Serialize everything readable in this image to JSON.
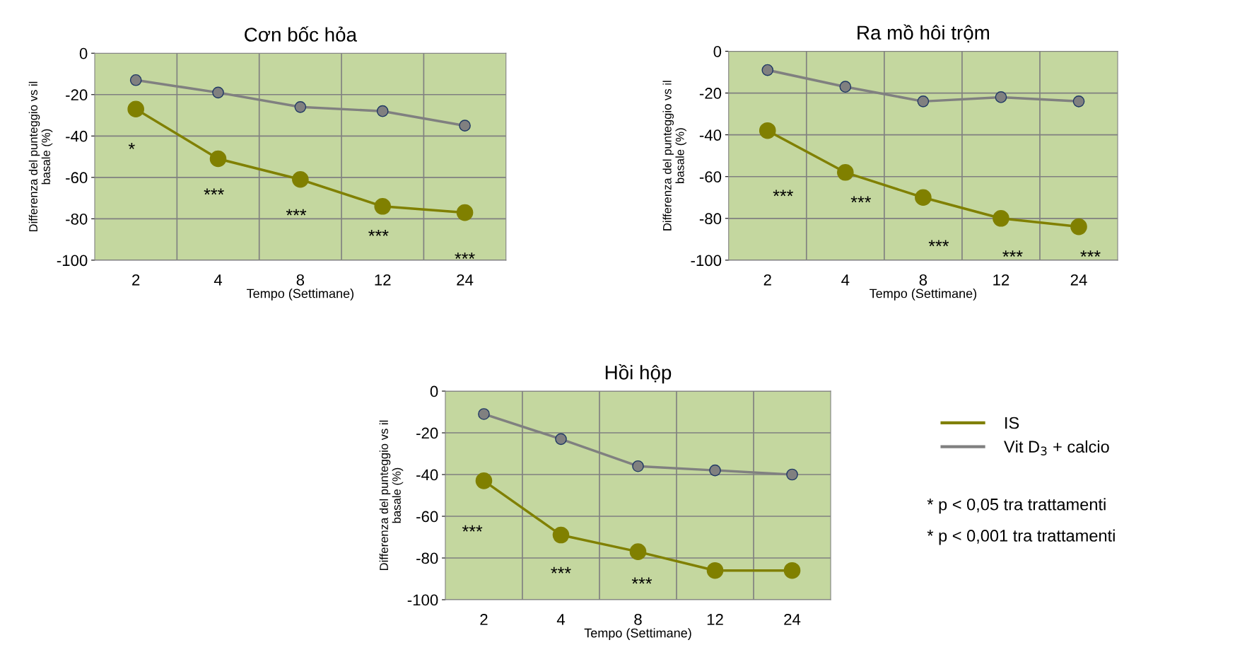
{
  "chart_data": [
    {
      "type": "line",
      "title": "Cơn bốc hỏa",
      "xlabel": "Tempo (Settimane)",
      "ylabel": "Differenza del punteggio vs il\nbasale (%)",
      "categories": [
        "2",
        "4",
        "8",
        "12",
        "24"
      ],
      "ylim": [
        -100,
        0
      ],
      "yticks": [
        -100,
        -80,
        -60,
        -40,
        -20,
        0
      ],
      "grid": true,
      "marker": "circle",
      "series": [
        {
          "color": "#808000",
          "values": [
            -27,
            -51,
            -61,
            -74,
            -77
          ]
        },
        {
          "color": "#808080",
          "values": [
            -13,
            -19,
            -26,
            -28,
            -35
          ]
        }
      ],
      "annotations": [
        "*",
        "***",
        "***",
        "***",
        "***"
      ]
    },
    {
      "type": "line",
      "title": "Ra mồ hôi trộm",
      "xlabel": "Tempo (Settimane)",
      "ylabel": "Differenza del punteggio vs il\nbasale (%)",
      "categories": [
        "2",
        "4",
        "8",
        "12",
        "24"
      ],
      "ylim": [
        -100,
        0
      ],
      "yticks": [
        -100,
        -80,
        -60,
        -40,
        -20,
        0
      ],
      "grid": true,
      "marker": "circle",
      "series": [
        {
          "color": "#808000",
          "values": [
            -38,
            -58,
            -70,
            -80,
            -84
          ]
        },
        {
          "color": "#808080",
          "values": [
            -9,
            -17,
            -24,
            -22,
            -24
          ]
        }
      ],
      "annotations": [
        "***",
        "***",
        "***",
        "***",
        "***"
      ]
    },
    {
      "type": "line",
      "title": "Hồi hộp",
      "xlabel": "Tempo (Settimane)",
      "ylabel": "Differenza del punteggio vs il\nbasale (%)",
      "categories": [
        "2",
        "4",
        "8",
        "12",
        "24"
      ],
      "ylim": [
        -100,
        0
      ],
      "yticks": [
        -100,
        -80,
        -60,
        -40,
        -20,
        0
      ],
      "grid": true,
      "marker": "circle",
      "legend": "right",
      "series": [
        {
          "name": "IS",
          "color": "#808000",
          "values": [
            -43,
            -69,
            -77,
            -86,
            -86
          ]
        },
        {
          "name": "Vit D$_{3}$ + calcio",
          "color": "#808080",
          "values": [
            -11,
            -23,
            -36,
            -38,
            -40
          ]
        }
      ],
      "annotations": [
        "***",
        "***",
        "***",
        "* p < 0,05 tra trattamenti",
        "* p < 0,001 tra trattamenti"
      ]
    }
  ]
}
